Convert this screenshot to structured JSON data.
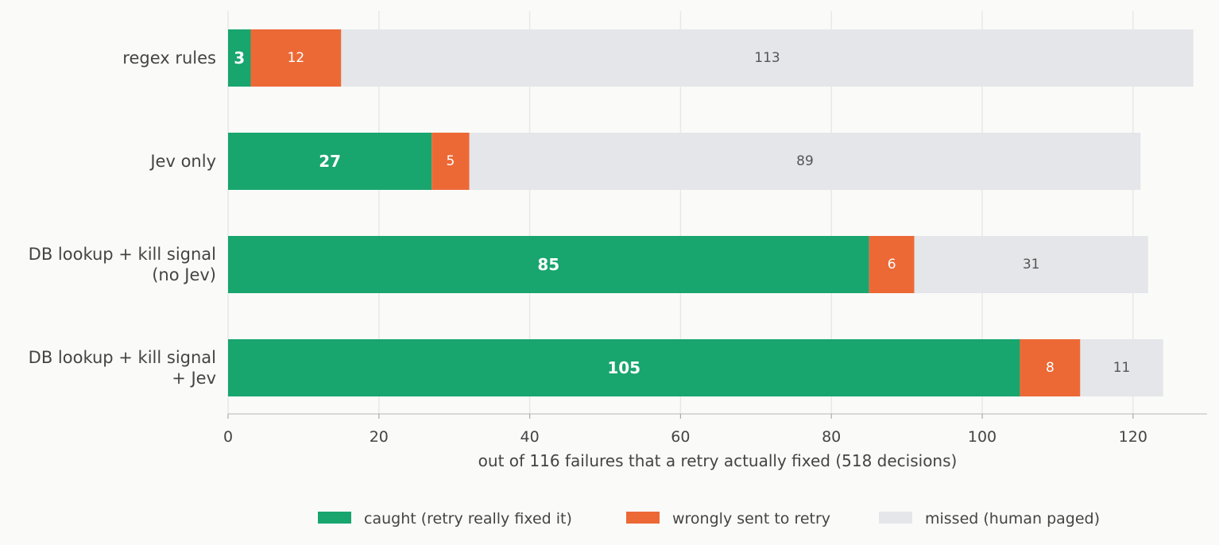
{
  "chart_data": {
    "type": "bar",
    "orientation": "horizontal",
    "stacked": true,
    "categories": [
      [
        "regex rules"
      ],
      [
        "Jev only"
      ],
      [
        "DB lookup + kill signal",
        "(no Jev)"
      ],
      [
        "DB lookup + kill signal",
        "+ Jev"
      ]
    ],
    "series": [
      {
        "name": "caught (retry really fixed it)",
        "color": "#18a56e",
        "values": [
          3,
          27,
          85,
          105
        ]
      },
      {
        "name": "wrongly sent to retry",
        "color": "#ec6936",
        "values": [
          12,
          5,
          6,
          8
        ]
      },
      {
        "name": "missed (human paged)",
        "color": "#e5e6ea",
        "values": [
          113,
          89,
          31,
          11
        ]
      }
    ],
    "xlabel": "out of 116 failures that a retry actually fixed  (518 decisions)",
    "xlim": [
      0,
      131
    ],
    "xticks": [
      0,
      20,
      40,
      60,
      80,
      100,
      120
    ],
    "grid": "vertical",
    "legend_position": "bottom-center"
  }
}
